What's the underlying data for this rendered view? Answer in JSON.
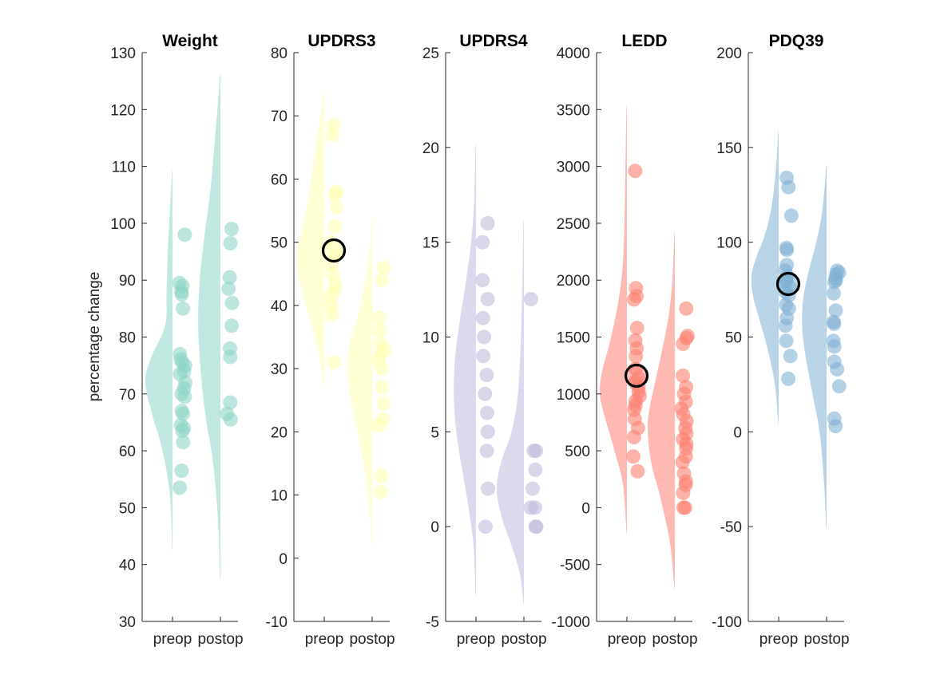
{
  "figure": {
    "ylabel": "percentage change",
    "categories": [
      "preop",
      "postop"
    ]
  },
  "chart_data": [
    {
      "type": "scatter",
      "title": "Weight",
      "color": "#8dd3c7",
      "ylim": [
        30,
        130
      ],
      "yticks": [
        30,
        40,
        50,
        60,
        70,
        80,
        90,
        100,
        110,
        120,
        130
      ],
      "xticklabels": [
        "preop",
        "postop"
      ],
      "ylabel": "percentage change",
      "preop_kde": {
        "y": [
          43,
          52,
          60,
          66,
          72,
          76,
          82,
          88,
          96,
          104,
          109
        ],
        "w": [
          0.1,
          0.5,
          2.0,
          4.0,
          5.5,
          4.5,
          1.5,
          1.2,
          0.9,
          0.4,
          0.1
        ]
      },
      "postop_kde": {
        "y": [
          38,
          48,
          58,
          66,
          74,
          82,
          90,
          98,
          106,
          114,
          120,
          126
        ],
        "w": [
          0.1,
          0.5,
          1.5,
          3.0,
          4.0,
          4.5,
          4.2,
          3.2,
          2.0,
          1.2,
          0.6,
          0.1
        ]
      },
      "series": [
        {
          "name": "preop",
          "values": [
            98,
            89.5,
            89,
            88,
            87.5,
            85,
            77,
            76,
            75.5,
            75,
            74,
            73.5,
            72,
            71,
            70,
            69.5,
            67,
            66.5,
            64.5,
            64,
            63.5,
            61.5,
            56.5,
            53.5
          ]
        },
        {
          "name": "postop",
          "values": [
            99,
            96.5,
            90.5,
            88.5,
            86,
            82,
            78,
            76.5,
            68.5,
            66.5,
            65.5
          ]
        }
      ],
      "mean_marker": null
    },
    {
      "type": "scatter",
      "title": "UPDRS3",
      "color": "#ffffb3",
      "ylim": [
        -10,
        80
      ],
      "yticks": [
        -10,
        0,
        10,
        20,
        30,
        40,
        50,
        60,
        70,
        80
      ],
      "xticklabels": [
        "preop",
        "postop"
      ],
      "preop_kde": {
        "y": [
          27,
          32,
          38,
          44,
          48,
          52,
          58,
          64,
          70,
          74
        ],
        "w": [
          0.1,
          1.0,
          3.0,
          5.0,
          5.5,
          4.5,
          3.0,
          2.0,
          0.8,
          0.1
        ]
      },
      "postop_kde": {
        "y": [
          2,
          8,
          14,
          20,
          26,
          30,
          34,
          38,
          42,
          48,
          54
        ],
        "w": [
          0.1,
          0.6,
          1.5,
          3.0,
          4.5,
          5.0,
          4.5,
          3.0,
          1.8,
          0.6,
          0.1
        ]
      },
      "series": [
        {
          "name": "preop",
          "values": [
            68.5,
            67,
            58,
            57.5,
            55.5,
            52.5,
            50,
            48,
            46.5,
            45,
            43.5,
            42.5,
            41.5,
            40,
            38.5,
            31
          ]
        },
        {
          "name": "postop",
          "values": [
            46,
            44,
            38,
            36,
            34,
            33,
            32.5,
            31.5,
            30,
            27,
            24.5,
            22,
            21,
            13,
            10.5
          ]
        }
      ],
      "mean_marker": {
        "series": "preop",
        "value": 48.7
      }
    },
    {
      "type": "scatter",
      "title": "UPDRS4",
      "color": "#bebada",
      "ylim": [
        -5,
        25
      ],
      "yticks": [
        -5,
        0,
        5,
        10,
        15,
        20,
        25
      ],
      "xticklabels": [
        "preop",
        "postop"
      ],
      "preop_kde": {
        "y": [
          -3.5,
          -1,
          1,
          3,
          5,
          7,
          9,
          11,
          13,
          15,
          17,
          20
        ],
        "w": [
          0.1,
          0.5,
          1.5,
          2.8,
          4.0,
          4.5,
          4.2,
          3.2,
          2.0,
          1.0,
          0.4,
          0.1
        ]
      },
      "postop_kde": {
        "y": [
          -4,
          -2.5,
          -1,
          0.5,
          2,
          3.5,
          5,
          7,
          10,
          13,
          16
        ],
        "w": [
          0.1,
          0.8,
          2.5,
          4.5,
          5.5,
          4.5,
          2.5,
          1.2,
          0.6,
          0.3,
          0.1
        ]
      },
      "series": [
        {
          "name": "preop",
          "values": [
            16,
            15,
            13,
            12,
            11,
            10,
            9,
            8,
            7,
            6,
            5,
            4,
            2,
            0
          ]
        },
        {
          "name": "postop",
          "values": [
            12,
            4,
            4,
            3,
            2,
            1,
            1,
            0,
            0
          ]
        }
      ],
      "mean_marker": null
    },
    {
      "type": "scatter",
      "title": "LEDD",
      "color": "#fb8072",
      "ylim": [
        -1000,
        4000
      ],
      "yticks": [
        -1000,
        -500,
        0,
        500,
        1000,
        1500,
        2000,
        2500,
        3000,
        3500,
        4000
      ],
      "xticklabels": [
        "preop",
        "postop"
      ],
      "preop_kde": {
        "y": [
          -200,
          200,
          500,
          800,
          1000,
          1200,
          1500,
          1800,
          2100,
          2500,
          3000,
          3500
        ],
        "w": [
          0.1,
          0.8,
          2.5,
          4.5,
          5.5,
          5.0,
          3.2,
          1.8,
          0.9,
          0.5,
          0.3,
          0.1
        ]
      },
      "postop_kde": {
        "y": [
          -700,
          -300,
          100,
          400,
          700,
          900,
          1100,
          1400,
          1700,
          2000,
          2400
        ],
        "w": [
          0.1,
          1.0,
          3.0,
          4.8,
          5.5,
          5.0,
          4.0,
          2.5,
          1.2,
          0.5,
          0.1
        ]
      },
      "series": [
        {
          "name": "preop",
          "values": [
            2960,
            1930,
            1860,
            1830,
            1580,
            1470,
            1400,
            1330,
            1220,
            1140,
            1100,
            1060,
            1020,
            980,
            940,
            900,
            860,
            780,
            700,
            620,
            450,
            320
          ]
        },
        {
          "name": "postop",
          "values": [
            1750,
            1510,
            1490,
            1440,
            1160,
            1060,
            1000,
            930,
            870,
            820,
            760,
            700,
            650,
            600,
            560,
            520,
            450,
            400,
            300,
            230,
            200,
            130,
            0,
            0
          ]
        }
      ],
      "mean_marker": {
        "series": "preop",
        "value": 1160
      }
    },
    {
      "type": "scatter",
      "title": "PDQ39",
      "color": "#80b1d3",
      "ylim": [
        -100,
        200
      ],
      "yticks": [
        -100,
        -50,
        0,
        50,
        100,
        150,
        200
      ],
      "xticklabels": [
        "preop",
        "postop"
      ],
      "preop_kde": {
        "y": [
          5,
          25,
          45,
          60,
          72,
          82,
          92,
          102,
          115,
          130,
          145,
          158
        ],
        "w": [
          0.1,
          0.8,
          2.5,
          4.2,
          5.5,
          5.8,
          4.8,
          3.2,
          1.8,
          0.9,
          0.4,
          0.1
        ]
      },
      "postop_kde": {
        "y": [
          -50,
          -25,
          0,
          20,
          40,
          55,
          70,
          85,
          100,
          115,
          130,
          140
        ],
        "w": [
          0.1,
          0.6,
          1.5,
          3.0,
          4.5,
          5.2,
          5.0,
          3.8,
          2.2,
          1.0,
          0.4,
          0.1
        ]
      },
      "series": [
        {
          "name": "preop",
          "values": [
            134,
            129,
            114,
            97,
            96,
            88,
            85,
            82,
            80,
            79,
            76,
            74,
            72,
            67,
            65,
            60,
            56,
            48,
            40,
            28
          ]
        },
        {
          "name": "postop",
          "values": [
            85,
            84,
            83,
            81,
            80,
            79,
            73,
            64,
            58,
            57,
            48,
            45,
            37,
            33,
            24,
            7,
            3
          ]
        }
      ],
      "mean_marker": {
        "series": "preop",
        "value": 78
      }
    }
  ]
}
